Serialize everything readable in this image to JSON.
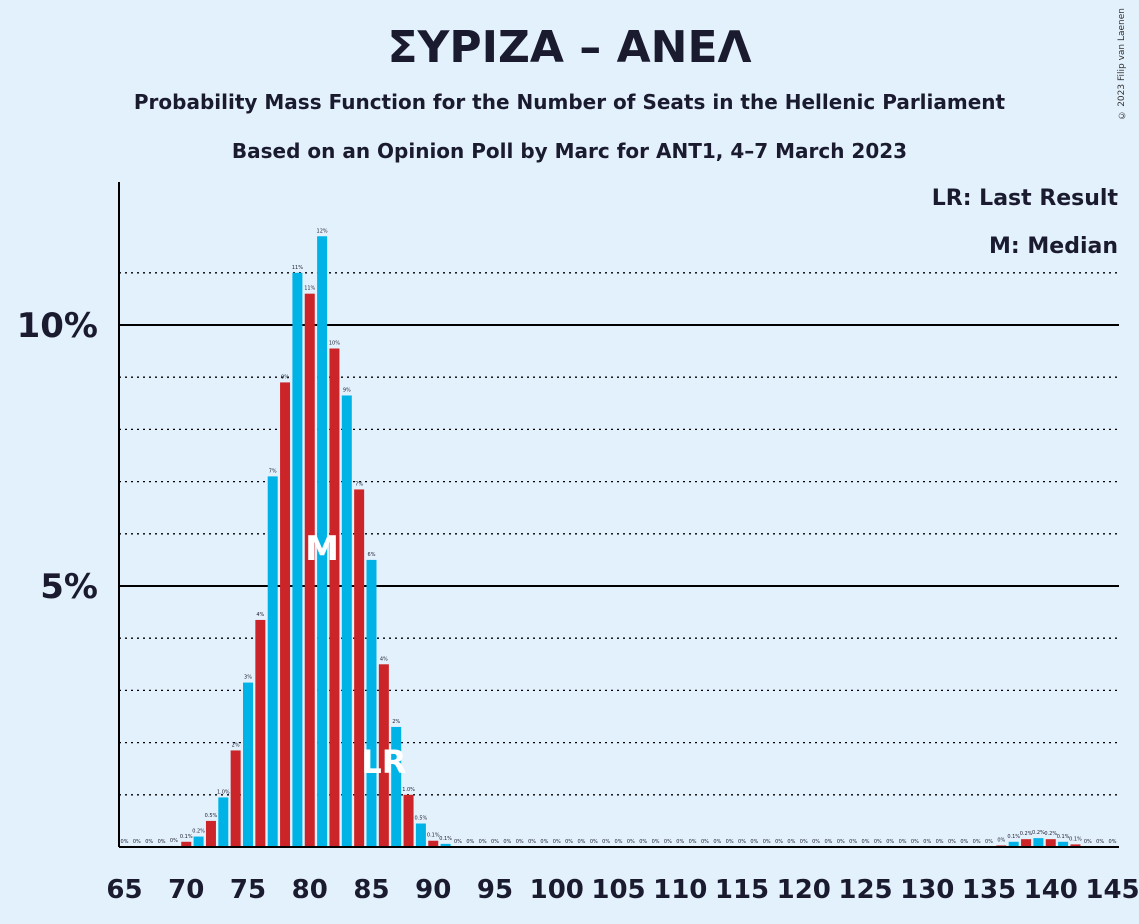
{
  "title": "ΣΥΡΙΖΑ – ΑΝΕΛ",
  "subtitle1": "Probability Mass Function for the Number of Seats in the Hellenic Parliament",
  "subtitle2": "Based on an Opinion Poll by Marc for ANT1, 4–7 March 2023",
  "copyright": "© 2023 Filip van Laenen",
  "legend": {
    "last_result": "LR: Last Result",
    "median": "M: Median"
  },
  "colors": {
    "background": "#e3f1fd",
    "cyan": "#00b3e6",
    "red": "#cc2529",
    "axis": "#000000"
  },
  "chart_data": {
    "type": "bar",
    "xlabel": "",
    "ylabel": "",
    "x_ticks": [
      65,
      70,
      75,
      80,
      85,
      90,
      95,
      100,
      105,
      110,
      115,
      120,
      125,
      130,
      135,
      140,
      145
    ],
    "y_ticks": [
      {
        "value": 5,
        "label": "5%"
      },
      {
        "value": 10,
        "label": "10%"
      }
    ],
    "ylim": [
      0,
      12.7
    ],
    "median_seat": 81,
    "median_label": "M",
    "last_result_seat": 86,
    "last_result_label": "LR",
    "bars": [
      {
        "seat": 65,
        "value": 0,
        "label": "0%"
      },
      {
        "seat": 66,
        "value": 0,
        "label": "0%"
      },
      {
        "seat": 67,
        "value": 0,
        "label": "0%"
      },
      {
        "seat": 68,
        "value": 0,
        "label": "0%"
      },
      {
        "seat": 69,
        "value": 0.02,
        "label": "0%"
      },
      {
        "seat": 70,
        "value": 0.1,
        "label": "0.1%"
      },
      {
        "seat": 71,
        "value": 0.2,
        "label": "0.2%"
      },
      {
        "seat": 72,
        "value": 0.5,
        "label": "0.5%"
      },
      {
        "seat": 73,
        "value": 0.95,
        "label": "1.0%"
      },
      {
        "seat": 74,
        "value": 1.85,
        "label": "2%"
      },
      {
        "seat": 75,
        "value": 3.15,
        "label": "3%"
      },
      {
        "seat": 76,
        "value": 4.35,
        "label": "4%"
      },
      {
        "seat": 77,
        "value": 7.1,
        "label": "7%"
      },
      {
        "seat": 78,
        "value": 8.9,
        "label": "9%"
      },
      {
        "seat": 79,
        "value": 11.0,
        "label": "11%"
      },
      {
        "seat": 80,
        "value": 10.6,
        "label": "11%"
      },
      {
        "seat": 81,
        "value": 11.7,
        "label": "12%"
      },
      {
        "seat": 82,
        "value": 9.55,
        "label": "10%"
      },
      {
        "seat": 83,
        "value": 8.65,
        "label": "9%"
      },
      {
        "seat": 84,
        "value": 6.85,
        "label": "7%"
      },
      {
        "seat": 85,
        "value": 5.5,
        "label": "6%"
      },
      {
        "seat": 86,
        "value": 3.5,
        "label": "4%"
      },
      {
        "seat": 87,
        "value": 2.3,
        "label": "2%"
      },
      {
        "seat": 88,
        "value": 1.0,
        "label": "1.0%"
      },
      {
        "seat": 89,
        "value": 0.45,
        "label": "0.5%"
      },
      {
        "seat": 90,
        "value": 0.12,
        "label": "0.1%"
      },
      {
        "seat": 91,
        "value": 0.06,
        "label": "0.1%"
      },
      {
        "seat": 92,
        "value": 0,
        "label": "0%"
      },
      {
        "seat": 93,
        "value": 0,
        "label": "0%"
      },
      {
        "seat": 94,
        "value": 0,
        "label": "0%"
      },
      {
        "seat": 95,
        "value": 0,
        "label": "0%"
      },
      {
        "seat": 96,
        "value": 0,
        "label": "0%"
      },
      {
        "seat": 97,
        "value": 0,
        "label": "0%"
      },
      {
        "seat": 98,
        "value": 0,
        "label": "0%"
      },
      {
        "seat": 99,
        "value": 0,
        "label": "0%"
      },
      {
        "seat": 100,
        "value": 0,
        "label": "0%"
      },
      {
        "seat": 101,
        "value": 0,
        "label": "0%"
      },
      {
        "seat": 102,
        "value": 0,
        "label": "0%"
      },
      {
        "seat": 103,
        "value": 0,
        "label": "0%"
      },
      {
        "seat": 104,
        "value": 0,
        "label": "0%"
      },
      {
        "seat": 105,
        "value": 0,
        "label": "0%"
      },
      {
        "seat": 106,
        "value": 0,
        "label": "0%"
      },
      {
        "seat": 107,
        "value": 0,
        "label": "0%"
      },
      {
        "seat": 108,
        "value": 0,
        "label": "0%"
      },
      {
        "seat": 109,
        "value": 0,
        "label": "0%"
      },
      {
        "seat": 110,
        "value": 0,
        "label": "0%"
      },
      {
        "seat": 111,
        "value": 0,
        "label": "0%"
      },
      {
        "seat": 112,
        "value": 0,
        "label": "0%"
      },
      {
        "seat": 113,
        "value": 0,
        "label": "0%"
      },
      {
        "seat": 114,
        "value": 0,
        "label": "0%"
      },
      {
        "seat": 115,
        "value": 0,
        "label": "0%"
      },
      {
        "seat": 116,
        "value": 0,
        "label": "0%"
      },
      {
        "seat": 117,
        "value": 0,
        "label": "0%"
      },
      {
        "seat": 118,
        "value": 0,
        "label": "0%"
      },
      {
        "seat": 119,
        "value": 0,
        "label": "0%"
      },
      {
        "seat": 120,
        "value": 0,
        "label": "0%"
      },
      {
        "seat": 121,
        "value": 0,
        "label": "0%"
      },
      {
        "seat": 122,
        "value": 0,
        "label": "0%"
      },
      {
        "seat": 123,
        "value": 0,
        "label": "0%"
      },
      {
        "seat": 124,
        "value": 0,
        "label": "0%"
      },
      {
        "seat": 125,
        "value": 0,
        "label": "0%"
      },
      {
        "seat": 126,
        "value": 0,
        "label": "0%"
      },
      {
        "seat": 127,
        "value": 0,
        "label": "0%"
      },
      {
        "seat": 128,
        "value": 0,
        "label": "0%"
      },
      {
        "seat": 129,
        "value": 0,
        "label": "0%"
      },
      {
        "seat": 130,
        "value": 0,
        "label": "0%"
      },
      {
        "seat": 131,
        "value": 0,
        "label": "0%"
      },
      {
        "seat": 132,
        "value": 0,
        "label": "0%"
      },
      {
        "seat": 133,
        "value": 0,
        "label": "0%"
      },
      {
        "seat": 134,
        "value": 0,
        "label": "0%"
      },
      {
        "seat": 135,
        "value": 0,
        "label": "0%"
      },
      {
        "seat": 136,
        "value": 0.03,
        "label": "0%"
      },
      {
        "seat": 137,
        "value": 0.1,
        "label": "0.1%"
      },
      {
        "seat": 138,
        "value": 0.15,
        "label": "0.2%"
      },
      {
        "seat": 139,
        "value": 0.17,
        "label": "0.2%"
      },
      {
        "seat": 140,
        "value": 0.15,
        "label": "0.2%"
      },
      {
        "seat": 141,
        "value": 0.1,
        "label": "0.1%"
      },
      {
        "seat": 142,
        "value": 0.05,
        "label": "0.1%"
      },
      {
        "seat": 143,
        "value": 0,
        "label": "0%"
      },
      {
        "seat": 144,
        "value": 0,
        "label": "0%"
      },
      {
        "seat": 145,
        "value": 0,
        "label": "0%"
      }
    ]
  }
}
